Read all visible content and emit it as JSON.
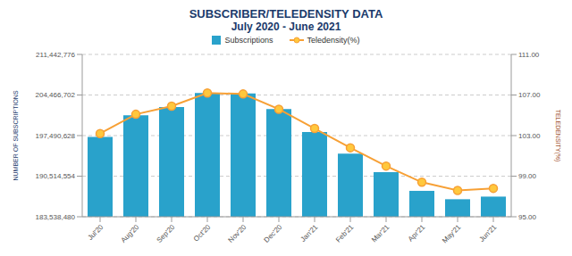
{
  "chart_data": {
    "type": "bar",
    "title": "SUBSCRIBER/TELEDENSITY DATA",
    "subtitle": "July 2020 - June 2021",
    "categories": [
      "Jul'20",
      "Aug'20",
      "Sep'20",
      "Oct'20",
      "Nov'20",
      "Dec'20",
      "Jan'21",
      "Feb'21",
      "Mar'21",
      "Apr'21",
      "May'21",
      "Jun'21"
    ],
    "series": [
      {
        "name": "Subscriptions",
        "type": "bar",
        "color": "#29a2cb",
        "values": [
          197250000,
          200980000,
          202400000,
          204800000,
          204750000,
          202060000,
          198100000,
          194400000,
          191200000,
          187990000,
          186550000,
          187000000
        ]
      },
      {
        "name": "Teledensity(%)",
        "type": "line",
        "axis": "y2",
        "color": "#f7a035",
        "marker": "circle",
        "values": [
          103.2,
          105.1,
          105.9,
          107.2,
          107.1,
          105.6,
          103.7,
          101.8,
          100.0,
          98.4,
          97.6,
          97.8
        ]
      }
    ],
    "y_label": "NUMBER OF SUBSCRIPTIONS",
    "y2_label": "TELEDENSITY(%)",
    "ylim": [
      183538480,
      211442776
    ],
    "yticks": [
      {
        "value": 183538480,
        "label": "183,538,480"
      },
      {
        "value": 190514554,
        "label": "190,514,554"
      },
      {
        "value": 197490628,
        "label": "197,490,628"
      },
      {
        "value": 204466702,
        "label": "204,466,702"
      },
      {
        "value": 211442776,
        "label": "211,442,776"
      }
    ],
    "y2lim": [
      95,
      111
    ],
    "y2ticks": [
      {
        "value": 95,
        "label": "95.00"
      },
      {
        "value": 99,
        "label": "99.00"
      },
      {
        "value": 103,
        "label": "103.00"
      },
      {
        "value": 107,
        "label": "107.00"
      },
      {
        "value": 111,
        "label": "111.00"
      }
    ],
    "grid": true,
    "legend": "top"
  }
}
